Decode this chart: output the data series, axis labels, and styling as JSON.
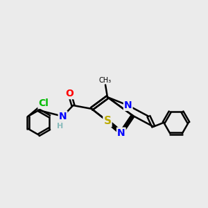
{
  "bg_color": "#ebebeb",
  "bond_color": "#000000",
  "bond_width": 1.8,
  "atom_colors": {
    "N": "#0000ff",
    "O": "#ff0000",
    "S": "#bbaa00",
    "Cl": "#00bb00",
    "H": "#88bbbb",
    "C": "#000000"
  },
  "font_size": 10,
  "fig_size": [
    3.0,
    3.0
  ],
  "dpi": 100
}
